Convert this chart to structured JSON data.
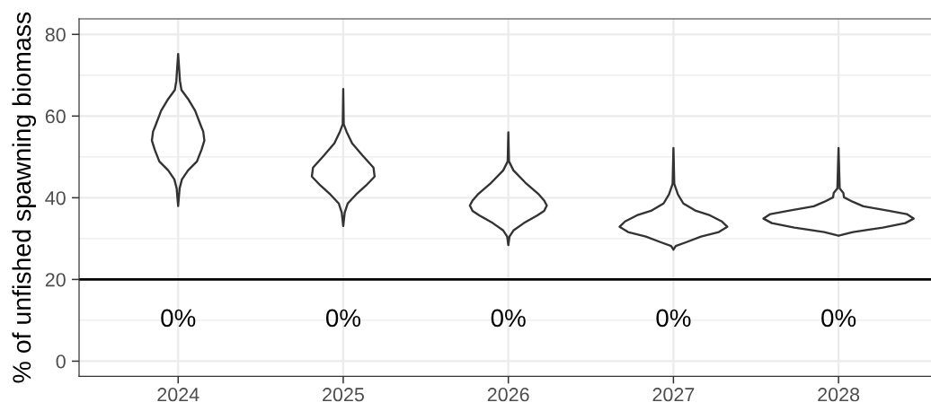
{
  "chart_data": {
    "type": "line",
    "ylabel": "% of unfished spawning biomass",
    "series": [
      {
        "color": "#333333",
        "x": [
          2024,
          2024.011,
          2024.02,
          2024.06,
          2024.103,
          2024.138,
          2024.152,
          2024.159,
          2024.142,
          2024.114,
          2024.06,
          2024.023,
          2024.009,
          2024,
          null,
          2024,
          2023.989,
          2023.98,
          2023.94,
          2023.897,
          2023.862,
          2023.848,
          2023.841,
          2023.858,
          2023.886,
          2023.94,
          2023.977,
          2023.991,
          2024
        ],
        "values": [
          75.2,
          68.6,
          66.4,
          64.2,
          61.3,
          57.6,
          56.2,
          54.0,
          51.8,
          48.9,
          46.7,
          44.5,
          42.3,
          38.0,
          null,
          75.2,
          68.6,
          66.4,
          64.2,
          61.3,
          57.6,
          56.2,
          54.0,
          51.8,
          48.9,
          46.7,
          44.5,
          42.3,
          38.0
        ]
      },
      {
        "color": "#333333",
        "x": [
          2025,
          2025.003,
          2025.02,
          2025.054,
          2025.118,
          2025.183,
          2025.19,
          2025.138,
          2025.078,
          2025.027,
          2025.009,
          2025,
          null,
          2025,
          2024.997,
          2024.98,
          2024.946,
          2024.882,
          2024.817,
          2024.81,
          2024.862,
          2024.922,
          2024.973,
          2024.991,
          2025
        ],
        "values": [
          66.6,
          58.0,
          56.2,
          53.3,
          50.3,
          47.4,
          45.2,
          43.0,
          40.8,
          38.6,
          36.4,
          33.1,
          null,
          66.6,
          58.0,
          56.2,
          53.3,
          50.3,
          47.4,
          45.2,
          43.0,
          40.8,
          38.6,
          36.4,
          33.1
        ]
      },
      {
        "color": "#333333",
        "x": [
          2026,
          2026.004,
          2026.031,
          2026.103,
          2026.185,
          2026.217,
          2026.233,
          2026.217,
          2026.176,
          2026.094,
          2026.031,
          2026.007,
          2026,
          null,
          2026,
          2025.996,
          2025.969,
          2025.897,
          2025.815,
          2025.783,
          2025.767,
          2025.783,
          2025.824,
          2025.906,
          2025.969,
          2025.993,
          2026
        ],
        "values": [
          56.0,
          48.9,
          46.7,
          43.7,
          40.8,
          39.3,
          38.1,
          36.8,
          35.7,
          33.8,
          32.0,
          30.5,
          28.4,
          null,
          56.0,
          48.9,
          46.7,
          43.7,
          40.8,
          39.3,
          38.1,
          36.8,
          35.7,
          33.8,
          32.0,
          30.5,
          28.4
        ]
      },
      {
        "color": "#333333",
        "x": [
          2027,
          2027.005,
          2027.027,
          2027.06,
          2027.136,
          2027.221,
          2027.293,
          2027.326,
          2027.275,
          2027.167,
          2027.076,
          2027.014,
          2027,
          null,
          2027,
          2026.995,
          2026.973,
          2026.94,
          2026.864,
          2026.779,
          2026.707,
          2026.674,
          2026.725,
          2026.833,
          2026.924,
          2026.986,
          2027
        ],
        "values": [
          52.2,
          43.4,
          40.8,
          38.6,
          36.8,
          35.7,
          34.2,
          32.9,
          31.6,
          30.5,
          29.1,
          28.2,
          27.3,
          null,
          52.2,
          43.4,
          40.8,
          38.6,
          36.8,
          35.7,
          34.2,
          32.9,
          31.6,
          30.5,
          29.1,
          28.2,
          27.3
        ]
      },
      {
        "color": "#333333",
        "x": [
          2028,
          2028.007,
          2028.029,
          2028.033,
          2028.087,
          2028.15,
          2028.304,
          2028.413,
          2028.455,
          2028.404,
          2028.268,
          2028.087,
          2028,
          null,
          2028,
          2027.993,
          2027.971,
          2027.967,
          2027.913,
          2027.85,
          2027.696,
          2027.587,
          2027.545,
          2027.596,
          2027.732,
          2027.913,
          2028
        ],
        "values": [
          52.2,
          42.3,
          41.2,
          40.1,
          39.0,
          37.9,
          36.8,
          36.0,
          34.9,
          33.8,
          32.7,
          31.6,
          30.7,
          null,
          52.2,
          42.3,
          41.2,
          40.1,
          39.0,
          37.9,
          36.8,
          36.0,
          34.9,
          33.8,
          32.7,
          31.6,
          30.7
        ]
      }
    ],
    "xlim": [
      2023.4,
      2028.56
    ],
    "xticks": [
      2024,
      2025,
      2026,
      2027,
      2028
    ],
    "ylim": [
      -3.7,
      83.8
    ],
    "yticks": [
      0,
      20,
      40,
      60,
      80
    ],
    "grid": true,
    "line_style": "solid",
    "ref_lines": [
      {
        "axis": "y",
        "value": 20,
        "color": "#000000"
      }
    ],
    "annotations": [
      "0%",
      "0%",
      "0%",
      "0%",
      "0%"
    ]
  }
}
